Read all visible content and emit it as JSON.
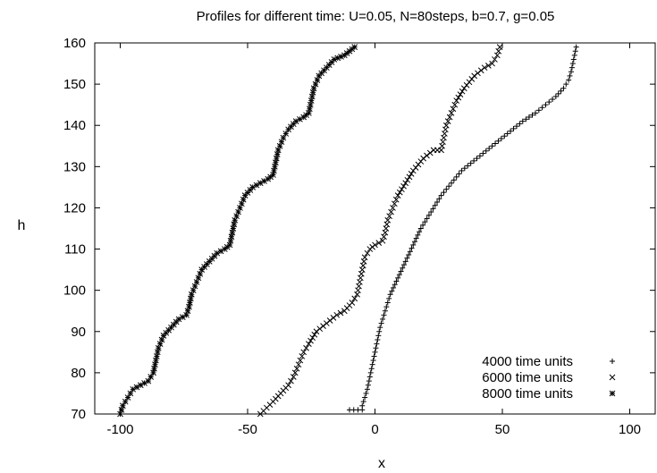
{
  "chart_data": {
    "type": "scatter",
    "title": "Profiles for different time: U=0.05, N=80steps, b=0.7, g=0.05",
    "xlabel": "x",
    "ylabel": "h",
    "xlim": [
      -110,
      110
    ],
    "ylim": [
      70,
      160
    ],
    "xticks": [
      -100,
      -50,
      0,
      50,
      100
    ],
    "yticks": [
      70,
      80,
      90,
      100,
      110,
      120,
      130,
      140,
      150,
      160
    ],
    "xtick_labels": [
      "-100",
      "-50",
      "0",
      "50",
      "100"
    ],
    "ytick_labels": [
      "70",
      "80",
      "90",
      "100",
      "110",
      "120",
      "130",
      "140",
      "150",
      "160"
    ],
    "grid": false,
    "legend_position": "bottom-right",
    "series": [
      {
        "name": "4000 time units",
        "marker": "plus",
        "color": "#000000",
        "points": [
          [
            -10,
            71
          ],
          [
            -5,
            71
          ],
          [
            -5,
            72
          ],
          [
            -4,
            74
          ],
          [
            -3,
            76
          ],
          [
            -2,
            79
          ],
          [
            -1,
            82
          ],
          [
            0,
            85
          ],
          [
            1,
            88
          ],
          [
            2,
            91
          ],
          [
            4,
            95
          ],
          [
            6,
            99
          ],
          [
            9,
            103
          ],
          [
            12,
            107
          ],
          [
            15,
            111
          ],
          [
            18,
            115
          ],
          [
            22,
            119
          ],
          [
            26,
            123
          ],
          [
            30,
            126
          ],
          [
            34,
            129
          ],
          [
            40,
            132
          ],
          [
            46,
            135
          ],
          [
            52,
            138
          ],
          [
            58,
            141
          ],
          [
            63,
            143
          ],
          [
            67,
            145
          ],
          [
            71,
            147
          ],
          [
            74,
            149
          ],
          [
            76,
            151
          ],
          [
            77,
            153
          ],
          [
            78,
            156
          ],
          [
            79,
            159
          ]
        ]
      },
      {
        "name": "6000 time units",
        "marker": "x",
        "color": "#000000",
        "points": [
          [
            -45,
            70
          ],
          [
            -40,
            73
          ],
          [
            -37,
            75
          ],
          [
            -34,
            77
          ],
          [
            -32,
            79
          ],
          [
            -30,
            82
          ],
          [
            -28,
            85
          ],
          [
            -26,
            87
          ],
          [
            -23,
            90
          ],
          [
            -19,
            92
          ],
          [
            -15,
            94
          ],
          [
            -12,
            95
          ],
          [
            -9,
            97
          ],
          [
            -7,
            99
          ],
          [
            -6,
            102
          ],
          [
            -5,
            105
          ],
          [
            -4,
            108
          ],
          [
            -2,
            110
          ],
          [
            0,
            111
          ],
          [
            3,
            112
          ],
          [
            4,
            114
          ],
          [
            5,
            117
          ],
          [
            7,
            120
          ],
          [
            9,
            123
          ],
          [
            12,
            126
          ],
          [
            15,
            129
          ],
          [
            19,
            132
          ],
          [
            23,
            134
          ],
          [
            26,
            134
          ],
          [
            27,
            137
          ],
          [
            28,
            140
          ],
          [
            30,
            143
          ],
          [
            32,
            146
          ],
          [
            35,
            149
          ],
          [
            39,
            152
          ],
          [
            43,
            154
          ],
          [
            46,
            155
          ],
          [
            48,
            157
          ],
          [
            49,
            159
          ]
        ]
      },
      {
        "name": "8000 time units",
        "marker": "star",
        "color": "#000000",
        "points": [
          [
            -100,
            70
          ],
          [
            -99,
            72
          ],
          [
            -97,
            74
          ],
          [
            -95,
            76
          ],
          [
            -92,
            77
          ],
          [
            -89,
            78
          ],
          [
            -87,
            80
          ],
          [
            -86,
            83
          ],
          [
            -85,
            86
          ],
          [
            -83,
            89
          ],
          [
            -80,
            91
          ],
          [
            -77,
            93
          ],
          [
            -74,
            94
          ],
          [
            -73,
            96
          ],
          [
            -72,
            99
          ],
          [
            -70,
            102
          ],
          [
            -68,
            105
          ],
          [
            -65,
            107
          ],
          [
            -62,
            109
          ],
          [
            -59,
            110
          ],
          [
            -57,
            111
          ],
          [
            -56,
            114
          ],
          [
            -55,
            117
          ],
          [
            -53,
            120
          ],
          [
            -51,
            123
          ],
          [
            -48,
            125
          ],
          [
            -45,
            126
          ],
          [
            -42,
            127
          ],
          [
            -40,
            128
          ],
          [
            -39,
            131
          ],
          [
            -38,
            134
          ],
          [
            -36,
            137
          ],
          [
            -34,
            139
          ],
          [
            -31,
            141
          ],
          [
            -28,
            142
          ],
          [
            -26,
            143
          ],
          [
            -25,
            146
          ],
          [
            -24,
            149
          ],
          [
            -22,
            152
          ],
          [
            -19,
            154
          ],
          [
            -16,
            156
          ],
          [
            -12,
            157
          ],
          [
            -10,
            158
          ],
          [
            -8,
            159
          ]
        ]
      }
    ]
  }
}
